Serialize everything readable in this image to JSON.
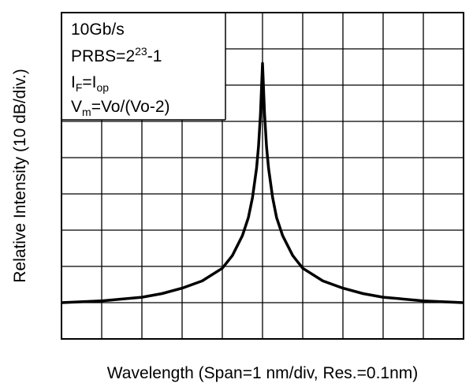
{
  "chart_data": {
    "type": "line",
    "xlabel": "Wavelength (Span=1 nm/div, Res.=0.1nm)",
    "ylabel": "Relative Intensity (10 dB/div.)",
    "grid": true,
    "x_divisions": 10,
    "y_divisions": 9,
    "xlim": [
      -5,
      5
    ],
    "ylim": [
      0,
      9
    ],
    "annotations": {
      "line1": "10Gb/s",
      "line2_base": "PRBS=2",
      "line2_sup": "23",
      "line2_tail": "-1",
      "line3_base": "I",
      "line3_sub1": "F",
      "line3_mid": "=I",
      "line3_sub2": "op",
      "line4_base": "V",
      "line4_sub": "m",
      "line4_tail": "=Vo/(Vo-2)"
    },
    "series": [
      {
        "x": [
          -5,
          -4,
          -3,
          -2.5,
          -2,
          -1.5,
          -1,
          -0.75,
          -0.5,
          -0.35,
          -0.25,
          -0.15,
          -0.1,
          -0.05,
          0,
          0.05,
          0.1,
          0.15,
          0.25,
          0.35,
          0.5,
          0.75,
          1,
          1.5,
          2,
          2.5,
          3,
          4,
          5
        ],
        "y": [
          1.0,
          1.05,
          1.15,
          1.25,
          1.4,
          1.6,
          1.95,
          2.3,
          2.85,
          3.35,
          3.9,
          4.7,
          5.3,
          6.2,
          7.6,
          6.2,
          5.3,
          4.7,
          3.9,
          3.35,
          2.85,
          2.3,
          1.95,
          1.6,
          1.4,
          1.25,
          1.15,
          1.05,
          1.0
        ]
      }
    ]
  }
}
